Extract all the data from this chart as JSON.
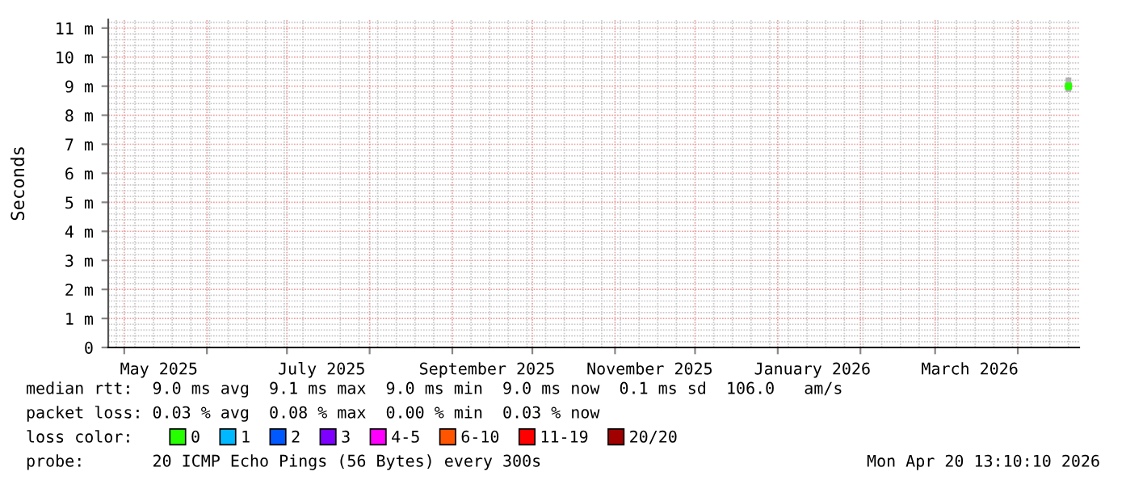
{
  "chart_data": {
    "type": "scatter",
    "ylabel": "Seconds",
    "xlim": [
      "2025-04-25",
      "2026-04-24"
    ],
    "xticks": [
      {
        "value": "2025-05-01",
        "label": null
      },
      {
        "value": "2025-05-14",
        "label": "May 2025"
      },
      {
        "value": "2025-06-01",
        "label": null
      },
      {
        "value": "2025-07-01",
        "label": null
      },
      {
        "value": "2025-07-14",
        "label": "July 2025"
      },
      {
        "value": "2025-08-01",
        "label": null
      },
      {
        "value": "2025-09-01",
        "label": null
      },
      {
        "value": "2025-09-14",
        "label": "September 2025"
      },
      {
        "value": "2025-10-01",
        "label": null
      },
      {
        "value": "2025-11-01",
        "label": null
      },
      {
        "value": "2025-11-14",
        "label": "November 2025"
      },
      {
        "value": "2025-12-01",
        "label": null
      },
      {
        "value": "2026-01-01",
        "label": null
      },
      {
        "value": "2026-01-14",
        "label": "January 2026"
      },
      {
        "value": "2026-02-01",
        "label": null
      },
      {
        "value": "2026-03-01",
        "label": null
      },
      {
        "value": "2026-03-14",
        "label": "March 2026"
      },
      {
        "value": "2026-04-01",
        "label": null
      }
    ],
    "ylim": [
      0,
      11.3
    ],
    "yticks": [
      0,
      {
        "value": 1,
        "label": "1 m"
      },
      {
        "value": 2,
        "label": "2 m"
      },
      {
        "value": 3,
        "label": "3 m"
      },
      {
        "value": 4,
        "label": "4 m"
      },
      {
        "value": 5,
        "label": "5 m"
      },
      {
        "value": 6,
        "label": "6 m"
      },
      {
        "value": 7,
        "label": "7 m"
      },
      {
        "value": 8,
        "label": "8 m"
      },
      {
        "value": 9,
        "label": "9 m"
      },
      {
        "value": 10,
        "label": "10 m"
      },
      {
        "value": 11,
        "label": "11 m"
      }
    ],
    "grid": true,
    "legend": "bottom",
    "legend_title": "loss color:",
    "marker": "square",
    "x": [
      "2026-04-20"
    ],
    "series": [
      {
        "name": "0",
        "color": "#26ff00",
        "values": [
          9
        ],
        "errors": [
          [
            8.8,
            9.3
          ]
        ]
      },
      {
        "name": "1",
        "color": "#00b8ff",
        "values": [
          null
        ]
      },
      {
        "name": "2",
        "color": "#0059ff",
        "values": [
          null
        ]
      },
      {
        "name": "3",
        "color": "#7e00ff",
        "values": [
          null
        ]
      },
      {
        "name": "4-5",
        "color": "#ff00ff",
        "values": [
          null
        ]
      },
      {
        "name": "6-10",
        "color": "#ff5500",
        "values": [
          null
        ]
      },
      {
        "name": "11-19",
        "color": "#ff0000",
        "values": [
          null
        ]
      },
      {
        "name": "20/20",
        "color": "#a10000",
        "values": [
          null
        ]
      }
    ],
    "annotations": [
      "median rtt:  9.0 ms avg  9.1 ms max  9.0 ms min  9.0 ms now  0.1 ms sd  106.0   am/s",
      "packet loss: 0.03 % avg  0.08 % max  0.00 % min  0.03 % now",
      "probe:       20 ICMP Echo Pings (56 Bytes) every 300s",
      "Mon Apr 20 13:10:10 2026"
    ]
  }
}
